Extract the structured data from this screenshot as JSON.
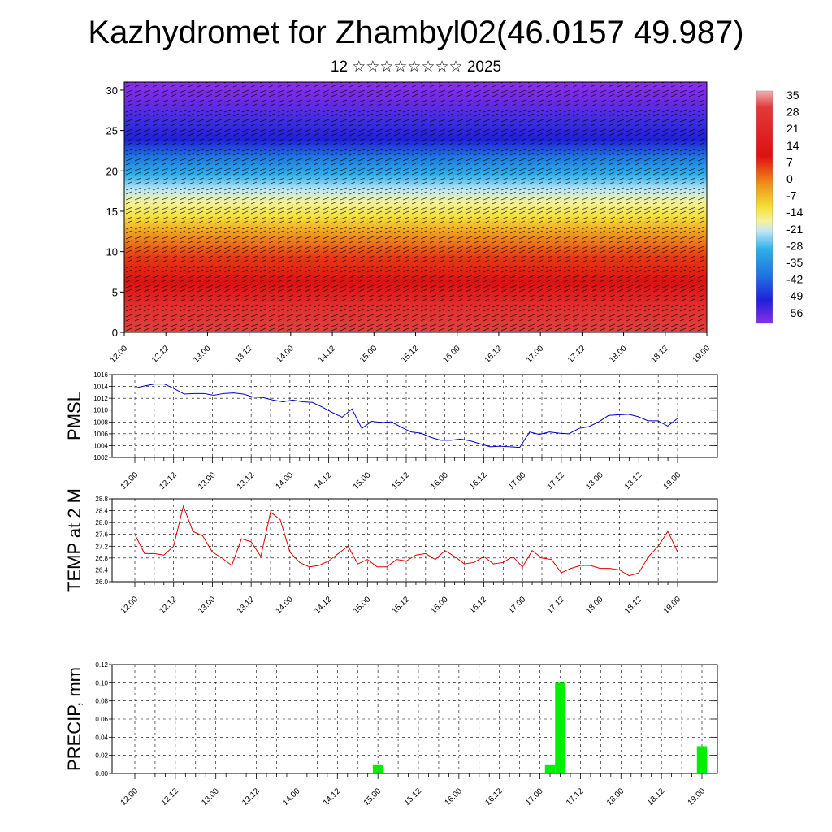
{
  "header": {
    "title": "Kazhydromet for Zhambyl02(46.0157 49.987)",
    "subtitle": "12 ☆☆☆☆☆☆☆☆ 2025"
  },
  "chart_data": [
    {
      "type": "heatmap",
      "name": "cross-section",
      "x_ticks": [
        "12.00",
        "12.12",
        "13.00",
        "13.12",
        "14.00",
        "14.12",
        "15.00",
        "15.12",
        "16.00",
        "16.12",
        "17.00",
        "17.12",
        "18.00",
        "18.12",
        "19.00"
      ],
      "y_ticks": [
        "0",
        "5",
        "10",
        "15",
        "20",
        "25",
        "30"
      ],
      "ylim": [
        0,
        31
      ],
      "colorbar_labels": [
        "35",
        "28",
        "21",
        "14",
        "7",
        "0",
        "-7",
        "-14",
        "-21",
        "-28",
        "-35",
        "-42",
        "-49",
        "-56"
      ],
      "colors": {
        "warm": "#dd1111",
        "pink": "#ea8080",
        "yellow": "#f4e53a",
        "cyan": "#2fb0ea",
        "blue": "#2020d8",
        "violet": "#8a30e8"
      },
      "overlay": "wind vectors"
    },
    {
      "type": "line",
      "name": "pmsl",
      "ylabel": "PMSL",
      "ylim": [
        1002,
        1016
      ],
      "y_ticks": [
        "1016",
        "1014",
        "1012",
        "1010",
        "1008",
        "1006",
        "1004",
        "1002"
      ],
      "x_ticks": [
        "12.00",
        "12.12",
        "13.00",
        "13.12",
        "14.00",
        "14.12",
        "15.00",
        "15.12",
        "16.00",
        "16.12",
        "17.00",
        "17.12",
        "18.00",
        "18.12",
        "19.00"
      ],
      "color": "#0000cc",
      "values": [
        1013.7,
        1014.1,
        1014.4,
        1014.4,
        1013.6,
        1012.7,
        1012.8,
        1012.8,
        1012.5,
        1012.8,
        1012.9,
        1012.7,
        1012.2,
        1012.1,
        1011.7,
        1011.4,
        1011.7,
        1011.4,
        1011.3,
        1010.5,
        1009.6,
        1008.8,
        1010.2,
        1006.9,
        1008.1,
        1007.9,
        1008.0,
        1007.1,
        1006.3,
        1006.1,
        1005.4,
        1004.9,
        1004.9,
        1005.1,
        1004.8,
        1004.3,
        1003.8,
        1003.9,
        1003.8,
        1003.7,
        1006.3,
        1005.9,
        1006.3,
        1006.1,
        1006.0,
        1006.9,
        1007.2,
        1008.0,
        1009.1,
        1009.2,
        1009.3,
        1008.9,
        1008.2,
        1008.2,
        1007.3,
        1008.6
      ]
    },
    {
      "type": "line",
      "name": "temp2m",
      "ylabel": "TEMP at 2 M",
      "ylim": [
        26.0,
        28.8
      ],
      "y_ticks": [
        "28.8",
        "28.4",
        "28.0",
        "27.6",
        "27.2",
        "26.8",
        "26.4",
        "26.0"
      ],
      "x_ticks": [
        "12.00",
        "12.12",
        "13.00",
        "13.12",
        "14.00",
        "14.12",
        "15.00",
        "15.12",
        "16.00",
        "16.12",
        "17.00",
        "17.12",
        "18.00",
        "18.12",
        "19.00"
      ],
      "color": "#dd0000",
      "values": [
        27.6,
        26.95,
        26.95,
        26.9,
        27.2,
        28.55,
        27.7,
        27.55,
        27.0,
        26.8,
        26.55,
        27.45,
        27.35,
        26.85,
        28.35,
        28.1,
        27.0,
        26.65,
        26.5,
        26.55,
        26.7,
        26.95,
        27.2,
        26.6,
        26.75,
        26.5,
        26.5,
        26.75,
        26.7,
        26.9,
        26.95,
        26.75,
        27.05,
        26.85,
        26.6,
        26.65,
        26.85,
        26.6,
        26.65,
        26.85,
        26.5,
        27.05,
        26.8,
        26.75,
        26.3,
        26.45,
        26.55,
        26.55,
        26.45,
        26.45,
        26.4,
        26.2,
        26.3,
        26.85,
        27.2,
        27.7,
        27.0
      ]
    },
    {
      "type": "bar",
      "name": "precip",
      "ylabel": "PRECIP, mm",
      "ylim": [
        0,
        0.12
      ],
      "y_ticks": [
        "0.12",
        "0.10",
        "0.08",
        "0.06",
        "0.04",
        "0.02",
        "0.00"
      ],
      "x_ticks": [
        "12.00",
        "12.12",
        "13.00",
        "13.12",
        "14.00",
        "14.12",
        "15.00",
        "15.12",
        "16.00",
        "16.12",
        "17.00",
        "17.12",
        "18.00",
        "18.12",
        "19.00"
      ],
      "color": "#00ee00",
      "bars": [
        {
          "x": 24,
          "value": 0.01
        },
        {
          "x": 41,
          "value": 0.01
        },
        {
          "x": 42,
          "value": 0.1
        },
        {
          "x": 56,
          "value": 0.03
        }
      ]
    }
  ]
}
